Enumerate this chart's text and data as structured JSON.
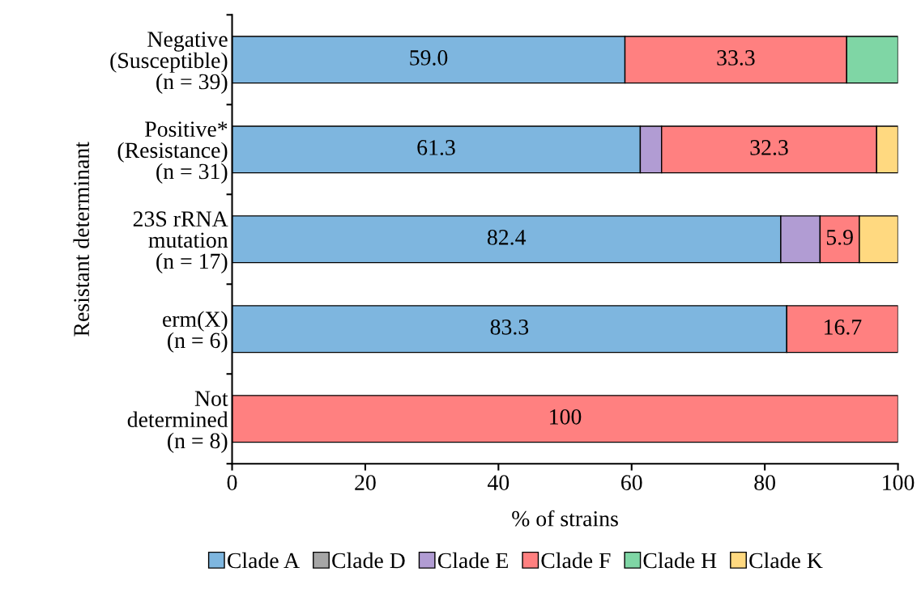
{
  "chart_data": {
    "type": "bar",
    "orientation": "horizontal",
    "stacked": true,
    "categories": [
      "Negative\n(Susceptible)\n(n = 39)",
      "Positive*\n(Resistance)\n(n = 31)",
      "23S rRNA\nmutation\n(n = 17)",
      "erm(X)\n(n = 6)",
      "Not\ndetermined\n(n = 8)"
    ],
    "series": [
      {
        "name": "Clade A",
        "color": "#7eb6df",
        "values": [
          59.0,
          61.3,
          82.4,
          83.3,
          0
        ],
        "value_labels": [
          "59.0",
          "61.3",
          "82.4",
          "83.3",
          null
        ]
      },
      {
        "name": "Clade D",
        "color": "#a6a6a6",
        "values": [
          0,
          0,
          0,
          0,
          0
        ],
        "value_labels": [
          null,
          null,
          null,
          null,
          null
        ]
      },
      {
        "name": "Clade E",
        "color": "#b19cd3",
        "values": [
          0,
          3.2,
          5.9,
          0,
          0
        ],
        "value_labels": [
          null,
          null,
          null,
          null,
          null
        ]
      },
      {
        "name": "Clade F",
        "color": "#ff8080",
        "values": [
          33.3,
          32.3,
          5.9,
          16.7,
          100
        ],
        "value_labels": [
          "33.3",
          "32.3",
          "5.9",
          "16.7",
          "100"
        ]
      },
      {
        "name": "Clade H",
        "color": "#7fd6a5",
        "values": [
          7.7,
          0,
          0,
          0,
          0
        ],
        "value_labels": [
          null,
          null,
          null,
          null,
          null
        ]
      },
      {
        "name": "Clade K",
        "color": "#ffd980",
        "values": [
          0,
          3.2,
          5.8,
          0,
          0
        ],
        "value_labels": [
          null,
          null,
          null,
          null,
          null
        ]
      }
    ],
    "xlabel": "% of strains",
    "ylabel": "Resistant determinant",
    "xlim": [
      0,
      100
    ],
    "xticks": [
      0,
      20,
      40,
      60,
      80,
      100
    ],
    "grid": false,
    "legend": "bottom"
  }
}
